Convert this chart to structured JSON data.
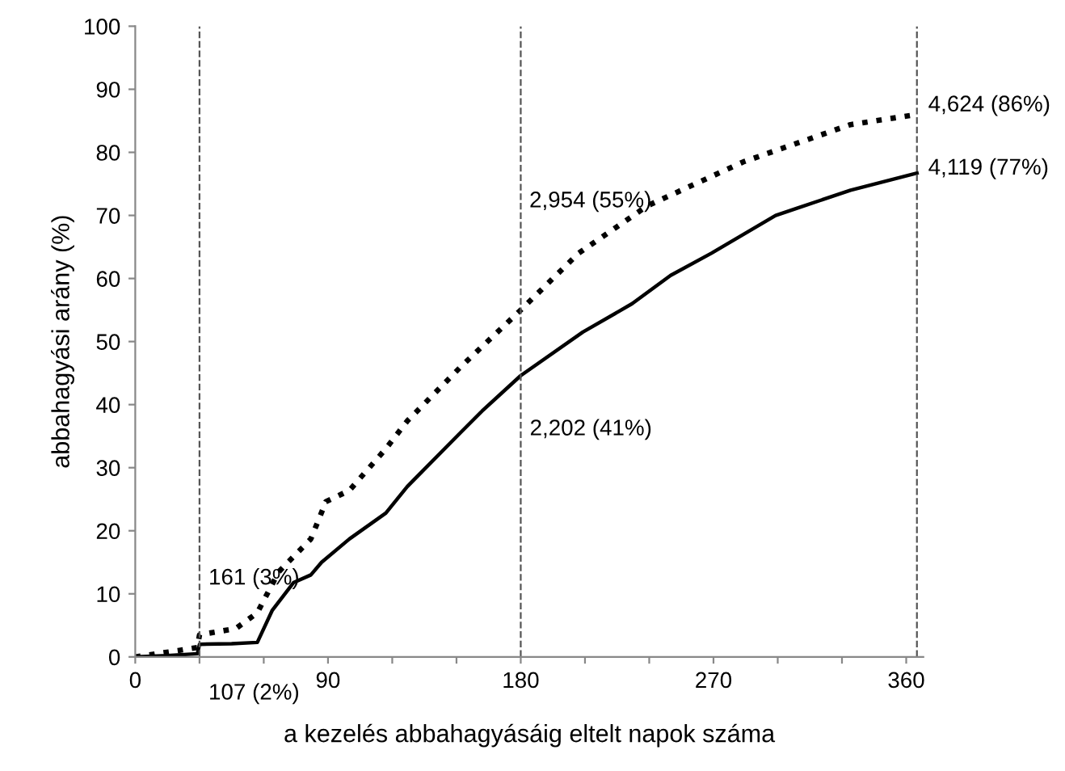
{
  "chart_data": {
    "type": "line",
    "xlabel": "a kezelés abbahagyásáig eltelt napok száma",
    "ylabel": "abbahagyási arány (%)",
    "xlim": [
      0,
      368
    ],
    "ylim": [
      0,
      100
    ],
    "xticks": [
      0,
      {
        "value": 30,
        "label": null
      },
      {
        "value": 60,
        "label": null
      },
      90,
      {
        "value": 120,
        "label": null
      },
      {
        "value": 150,
        "label": null
      },
      180,
      {
        "value": 210,
        "label": null
      },
      {
        "value": 240,
        "label": null
      },
      270,
      {
        "value": 300,
        "label": null
      },
      {
        "value": 330,
        "label": null
      },
      360
    ],
    "yticks": [
      0,
      10,
      20,
      30,
      40,
      50,
      60,
      70,
      80,
      90,
      100
    ],
    "grid": false,
    "legend": false,
    "marker": "none",
    "series": [
      {
        "color": "#000000",
        "line_style": "dotted",
        "x": [
          0,
          10,
          20,
          29,
          30,
          47,
          57,
          67,
          82,
          89,
          100,
          117,
          127,
          152,
          180,
          207,
          239,
          284,
          334,
          365
        ],
        "values": [
          0,
          0.5,
          1,
          1.5,
          3.5,
          4.5,
          7,
          13.5,
          18.7,
          24.6,
          26.4,
          33,
          37.4,
          46,
          55,
          64,
          71.5,
          78.5,
          84.4,
          86
        ]
      },
      {
        "color": "#000000",
        "line_style": "solid",
        "x": [
          0,
          15,
          29,
          30,
          45,
          57,
          64,
          74,
          82,
          87,
          100,
          117,
          127,
          152,
          162,
          180,
          209,
          232,
          250,
          269,
          299,
          334,
          365
        ],
        "values": [
          0,
          0.2,
          0.5,
          2,
          2.1,
          2.3,
          7.4,
          11.8,
          13,
          15,
          18.7,
          22.8,
          27,
          35.6,
          39,
          44.6,
          51.5,
          56,
          60.5,
          64,
          70,
          74,
          76.7
        ]
      }
    ],
    "ref_lines": [
      {
        "axis": "x",
        "value": 30,
        "color": "#555555",
        "line_style": "dashed"
      },
      {
        "axis": "x",
        "value": 180,
        "color": "#555555",
        "line_style": "dashed"
      },
      {
        "axis": "x",
        "value": 365,
        "color": "#555555",
        "line_style": "dashed"
      }
    ],
    "annotations": [
      {
        "text": "161 (3%)",
        "x": 30,
        "y": 3.5
      },
      {
        "text": "107 (2%)",
        "x": 30,
        "y": 2
      },
      {
        "text": "2,954 (55%)",
        "x": 239,
        "y": 71.5
      },
      {
        "text": "2,202 (41%)",
        "x": 180,
        "y": 44.6
      },
      {
        "text": "4,624 (86%)",
        "x": 365,
        "y": 86
      },
      {
        "text": "4,119 (77%)",
        "x": 365,
        "y": 76.7
      }
    ]
  }
}
